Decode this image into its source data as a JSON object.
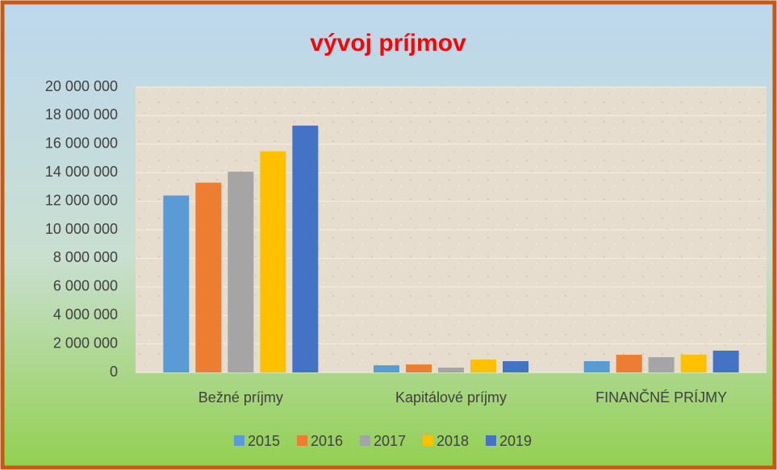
{
  "chart_data": {
    "type": "bar",
    "title": "vývoj príjmov",
    "categories": [
      "Bežné príjmy",
      "Kapitálové príjmy",
      "FINANČNÉ PRÍJMY"
    ],
    "series": [
      {
        "name": "2015",
        "color": "#5b9bd5",
        "values": [
          12400000,
          500000,
          790000
        ]
      },
      {
        "name": "2016",
        "color": "#ed7d31",
        "values": [
          13300000,
          560000,
          1240000
        ]
      },
      {
        "name": "2017",
        "color": "#a5a5a5",
        "values": [
          14070000,
          340000,
          1070000
        ]
      },
      {
        "name": "2018",
        "color": "#ffc000",
        "values": [
          15500000,
          900000,
          1240000
        ]
      },
      {
        "name": "2019",
        "color": "#4472c4",
        "values": [
          17300000,
          790000,
          1530000
        ]
      }
    ],
    "ylim": [
      0,
      20000000
    ],
    "yticks": [
      0,
      {
        "value": 2000000,
        "label": "2 000 000"
      },
      {
        "value": 4000000,
        "label": "4 000 000"
      },
      {
        "value": 6000000,
        "label": "6 000 000"
      },
      {
        "value": 8000000,
        "label": "8 000 000"
      },
      {
        "value": 10000000,
        "label": "10 000 000"
      },
      {
        "value": 12000000,
        "label": "12 000 000"
      },
      {
        "value": 14000000,
        "label": "14 000 000"
      },
      {
        "value": 16000000,
        "label": "16 000 000"
      },
      {
        "value": 18000000,
        "label": "18 000 000"
      },
      {
        "value": 20000000,
        "label": "20 000 000"
      }
    ],
    "grid": true,
    "legend": "bottom"
  }
}
